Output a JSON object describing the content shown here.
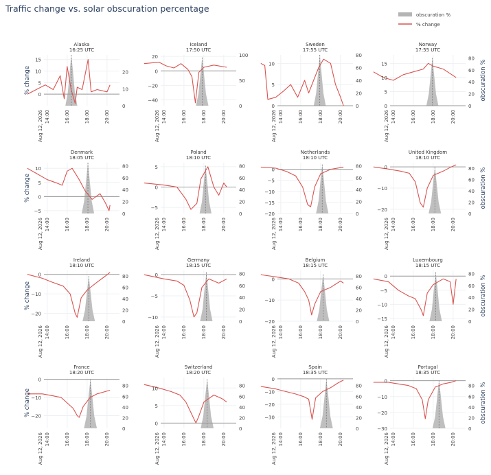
{
  "title": "Traffic change vs. solar obscuration percentage",
  "legend": {
    "placement": "top-right",
    "items": [
      {
        "label": "obscuration %",
        "color": "#b4b4b4",
        "kind": "area"
      },
      {
        "label": "% change",
        "color": "#d9534f",
        "kind": "line"
      }
    ]
  },
  "axis_labels": {
    "y_left": "% change",
    "y_right": "obscuration %"
  },
  "x_axis": {
    "ticks": [
      "14:00",
      "16:00",
      "18:00",
      "20:00"
    ],
    "date_label": "Aug 12, 2026",
    "range": [
      "13:40",
      "21:15"
    ]
  },
  "chart_data": [
    {
      "type": "line",
      "name": "Alaska",
      "subtitle": "16:25 UTC",
      "peak": "16:25",
      "width_hours": 1.2,
      "y1_range": [
        -5,
        17
      ],
      "y1_ticks": [
        0,
        5,
        10,
        15
      ],
      "y2_range": [
        0,
        30
      ],
      "y2_ticks": [
        0,
        10,
        20
      ],
      "obscuration_max": 30,
      "series_y": [
        [
          -1,
          0
        ],
        [
          0.8,
          4
        ],
        [
          1.6,
          2
        ],
        [
          2.3,
          8
        ],
        [
          2.7,
          -2
        ],
        [
          3.0,
          12
        ],
        [
          3.4,
          2
        ],
        [
          3.6,
          -1
        ],
        [
          3.8,
          -4
        ],
        [
          4.0,
          3
        ],
        [
          4.5,
          2
        ],
        [
          5.1,
          15
        ],
        [
          5.4,
          1
        ],
        [
          6,
          2
        ],
        [
          7,
          1
        ],
        [
          7.3,
          4
        ]
      ]
    },
    {
      "type": "line",
      "name": "Iceland",
      "subtitle": "17:50 UTC",
      "peak": "17:50",
      "width_hours": 1.25,
      "y1_range": [
        -48,
        22
      ],
      "y1_ticks": [
        -40,
        -20,
        0,
        20
      ],
      "y2_range": [
        0,
        100
      ],
      "y2_ticks": [
        0,
        50,
        100
      ],
      "obscuration_max": 95,
      "series_y": [
        [
          -1,
          10
        ],
        [
          0.5,
          12
        ],
        [
          1.2,
          7
        ],
        [
          2,
          4
        ],
        [
          2.7,
          10
        ],
        [
          3.4,
          2
        ],
        [
          3.8,
          -8
        ],
        [
          4.15,
          -44
        ],
        [
          4.5,
          -2
        ],
        [
          5,
          5
        ],
        [
          6,
          8
        ],
        [
          7.3,
          5
        ]
      ]
    },
    {
      "type": "line",
      "name": "Sweden",
      "subtitle": "17:55 UTC",
      "peak": "17:55",
      "width_hours": 1.2,
      "y1_range": [
        0,
        12
      ],
      "y1_ticks": [
        0,
        5,
        10
      ],
      "y2_range": [
        0,
        80
      ],
      "y2_ticks": [
        0,
        20,
        40,
        60,
        80
      ],
      "obscuration_max": 80,
      "series_y": [
        [
          -1,
          10
        ],
        [
          -0.6,
          9.5
        ],
        [
          -0.3,
          1.5
        ],
        [
          0.5,
          2
        ],
        [
          1.3,
          3.5
        ],
        [
          2,
          5
        ],
        [
          2.7,
          2
        ],
        [
          3.4,
          6
        ],
        [
          3.8,
          3
        ],
        [
          4.3,
          6
        ],
        [
          4.8,
          9
        ],
        [
          5.3,
          11
        ],
        [
          6,
          10
        ],
        [
          6.5,
          5
        ],
        [
          7.0,
          2
        ],
        [
          7.3,
          0
        ]
      ]
    },
    {
      "type": "line",
      "name": "Norway",
      "subtitle": "17:55 UTC",
      "peak": "17:55",
      "width_hours": 1.2,
      "y1_range": [
        0,
        18
      ],
      "y1_ticks": [
        0,
        5,
        10,
        15
      ],
      "y2_range": [
        0,
        85
      ],
      "y2_ticks": [
        0,
        20,
        40,
        60,
        80
      ],
      "obscuration_max": 80,
      "series_y": [
        [
          -1,
          12
        ],
        [
          0,
          10
        ],
        [
          1,
          9
        ],
        [
          2,
          11
        ],
        [
          3,
          12
        ],
        [
          4,
          13
        ],
        [
          4.5,
          15
        ],
        [
          5,
          14
        ],
        [
          6,
          13
        ],
        [
          7.3,
          10
        ]
      ]
    },
    {
      "type": "line",
      "name": "Denmark",
      "subtitle": "18:05 UTC",
      "peak": "18:05",
      "width_hours": 1.25,
      "y1_range": [
        -6,
        12
      ],
      "y1_ticks": [
        -5,
        0,
        5,
        10
      ],
      "y2_range": [
        0,
        85
      ],
      "y2_ticks": [
        0,
        20,
        40,
        60,
        80
      ],
      "obscuration_max": 85,
      "series_y": [
        [
          -1,
          10
        ],
        [
          0,
          8
        ],
        [
          1,
          6
        ],
        [
          1.8,
          5
        ],
        [
          2.5,
          4
        ],
        [
          3,
          9
        ],
        [
          3.5,
          10
        ],
        [
          4.2,
          6
        ],
        [
          4.8,
          2
        ],
        [
          5.5,
          -1
        ],
        [
          6.3,
          1
        ],
        [
          6.8,
          -2
        ],
        [
          7.2,
          -5
        ],
        [
          7.3,
          -3
        ]
      ]
    },
    {
      "type": "line",
      "name": "Poland",
      "subtitle": "18:10 UTC",
      "peak": "18:10",
      "width_hours": 1.2,
      "y1_range": [
        -6.5,
        6
      ],
      "y1_ticks": [
        -5,
        0,
        5
      ],
      "y2_range": [
        0,
        85
      ],
      "y2_ticks": [
        0,
        20,
        40,
        60,
        80
      ],
      "obscuration_max": 80,
      "series_y": [
        [
          -1,
          1
        ],
        [
          1,
          0.5
        ],
        [
          2.3,
          0
        ],
        [
          3.2,
          -3
        ],
        [
          3.7,
          -5.5
        ],
        [
          4.3,
          -4
        ],
        [
          4.7,
          2
        ],
        [
          5.4,
          5
        ],
        [
          6,
          0
        ],
        [
          6.5,
          -2
        ],
        [
          7,
          1
        ],
        [
          7.3,
          0
        ]
      ]
    },
    {
      "type": "line",
      "name": "Netherlands",
      "subtitle": "18:10 UTC",
      "peak": "18:10",
      "width_hours": 1.25,
      "y1_range": [
        -20,
        3
      ],
      "y1_ticks": [
        -20,
        -15,
        -10,
        -5,
        0
      ],
      "y2_range": [
        0,
        85
      ],
      "y2_ticks": [
        0,
        20,
        40,
        60,
        80
      ],
      "obscuration_max": 82,
      "series_y": [
        [
          -1,
          1
        ],
        [
          0.5,
          0.5
        ],
        [
          1.6,
          -1
        ],
        [
          2.5,
          -3
        ],
        [
          3.2,
          -8
        ],
        [
          3.7,
          -16
        ],
        [
          4.0,
          -17
        ],
        [
          4.4,
          -8
        ],
        [
          5,
          -2
        ],
        [
          6,
          0
        ],
        [
          7.3,
          1
        ]
      ]
    },
    {
      "type": "line",
      "name": "United Kingdom",
      "subtitle": "18:10 UTC",
      "peak": "18:10",
      "width_hours": 1.25,
      "y1_range": [
        -22,
        2
      ],
      "y1_ticks": [
        -20,
        -10,
        0
      ],
      "y2_range": [
        0,
        90
      ],
      "y2_ticks": [
        0,
        20,
        40,
        60,
        80
      ],
      "obscuration_max": 82,
      "series_y": [
        [
          -1,
          0
        ],
        [
          0.5,
          -1
        ],
        [
          1.7,
          -2
        ],
        [
          2.6,
          -3
        ],
        [
          3.2,
          -7
        ],
        [
          3.7,
          -17
        ],
        [
          4.0,
          -19
        ],
        [
          4.4,
          -10
        ],
        [
          5,
          -4
        ],
        [
          6,
          -2
        ],
        [
          6.8,
          0
        ],
        [
          7.3,
          1
        ]
      ]
    },
    {
      "type": "line",
      "name": "Ireland",
      "subtitle": "18:10 UTC",
      "peak": "18:10",
      "width_hours": 1.25,
      "y1_range": [
        -24,
        2
      ],
      "y1_ticks": [
        -20,
        -10,
        0
      ],
      "y2_range": [
        0,
        90
      ],
      "y2_ticks": [
        0,
        20,
        40,
        60,
        80
      ],
      "obscuration_max": 80,
      "series_y": [
        [
          -1,
          0
        ],
        [
          0.5,
          -2
        ],
        [
          1.5,
          -4
        ],
        [
          2.6,
          -6
        ],
        [
          3.3,
          -10
        ],
        [
          3.8,
          -20
        ],
        [
          4.0,
          -22
        ],
        [
          4.4,
          -12
        ],
        [
          5,
          -8
        ],
        [
          6,
          -4
        ],
        [
          6.8,
          -1
        ],
        [
          7.3,
          1
        ]
      ]
    },
    {
      "type": "line",
      "name": "Germany",
      "subtitle": "18:15 UTC",
      "peak": "18:15",
      "width_hours": 1.25,
      "y1_range": [
        -11,
        1
      ],
      "y1_ticks": [
        -10,
        -5,
        0
      ],
      "y2_range": [
        0,
        85
      ],
      "y2_ticks": [
        0,
        20,
        40,
        60,
        80
      ],
      "obscuration_max": 82,
      "series_y": [
        [
          -1,
          0
        ],
        [
          1,
          -1
        ],
        [
          2.3,
          -1.5
        ],
        [
          3,
          -2.5
        ],
        [
          3.6,
          -6
        ],
        [
          4.0,
          -10
        ],
        [
          4.3,
          -9
        ],
        [
          4.8,
          -3
        ],
        [
          5.5,
          -1
        ],
        [
          6.5,
          -2
        ],
        [
          7.3,
          -1
        ]
      ]
    },
    {
      "type": "line",
      "name": "Belgium",
      "subtitle": "18:15 UTC",
      "peak": "18:15",
      "width_hours": 1.25,
      "y1_range": [
        -20,
        4
      ],
      "y1_ticks": [
        -20,
        -10,
        0
      ],
      "y2_range": [
        0,
        90
      ],
      "y2_ticks": [
        0,
        20,
        40,
        60,
        80
      ],
      "obscuration_max": 83,
      "series_y": [
        [
          -1,
          2
        ],
        [
          0.5,
          1
        ],
        [
          1.8,
          0
        ],
        [
          2.8,
          -2
        ],
        [
          3.4,
          -6
        ],
        [
          3.8,
          -10
        ],
        [
          4.1,
          -17
        ],
        [
          4.4,
          -12
        ],
        [
          5,
          -6
        ],
        [
          6,
          -4
        ],
        [
          7,
          -1
        ],
        [
          7.3,
          -2
        ]
      ]
    },
    {
      "type": "line",
      "name": "Luxembourg",
      "subtitle": "18:15 UTC",
      "peak": "18:15",
      "width_hours": 1.25,
      "y1_range": [
        -16,
        2
      ],
      "y1_ticks": [
        -15,
        -10,
        -5,
        0
      ],
      "y2_range": [
        0,
        85
      ],
      "y2_ticks": [
        0,
        20,
        40,
        60,
        80
      ],
      "obscuration_max": 82,
      "series_y": [
        [
          -1,
          -1
        ],
        [
          0.5,
          -2
        ],
        [
          1.5,
          -5
        ],
        [
          2.5,
          -7
        ],
        [
          3.2,
          -8
        ],
        [
          3.8,
          -12
        ],
        [
          4.0,
          -14
        ],
        [
          4.4,
          -6
        ],
        [
          5,
          -3
        ],
        [
          6,
          -1
        ],
        [
          6.7,
          -2
        ],
        [
          7.0,
          -10
        ],
        [
          7.3,
          -1
        ]
      ]
    },
    {
      "type": "line",
      "name": "France",
      "subtitle": "18:20 UTC",
      "peak": "18:20",
      "width_hours": 1.3,
      "y1_range": [
        -27,
        1
      ],
      "y1_ticks": [
        -20,
        -10,
        0
      ],
      "y2_range": [
        0,
        95
      ],
      "y2_ticks": [
        0,
        20,
        40,
        60,
        80
      ],
      "obscuration_max": 92,
      "series_y": [
        [
          -1,
          -8
        ],
        [
          0.5,
          -8
        ],
        [
          1.5,
          -9
        ],
        [
          2.4,
          -10
        ],
        [
          3,
          -13
        ],
        [
          3.6,
          -16
        ],
        [
          4.0,
          -20
        ],
        [
          4.2,
          -21
        ],
        [
          4.6,
          -15
        ],
        [
          5.3,
          -10
        ],
        [
          6,
          -8
        ],
        [
          7.3,
          -6
        ]
      ]
    },
    {
      "type": "line",
      "name": "Switzerland",
      "subtitle": "18:20 UTC",
      "peak": "18:20",
      "width_hours": 1.3,
      "y1_range": [
        -1.5,
        13
      ],
      "y1_ticks": [
        0,
        5,
        10
      ],
      "y2_range": [
        0,
        95
      ],
      "y2_ticks": [
        0,
        20,
        40,
        60,
        80
      ],
      "obscuration_max": 92,
      "series_y": [
        [
          -1,
          11
        ],
        [
          0.5,
          10
        ],
        [
          1.7,
          9
        ],
        [
          2.6,
          8
        ],
        [
          3.2,
          6
        ],
        [
          3.7,
          3
        ],
        [
          4.2,
          0
        ],
        [
          4.5,
          2
        ],
        [
          5,
          6
        ],
        [
          6,
          8
        ],
        [
          6.8,
          7
        ],
        [
          7.3,
          6
        ]
      ]
    },
    {
      "type": "line",
      "name": "Spain",
      "subtitle": "18:35 UTC",
      "peak": "18:35",
      "width_hours": 1.3,
      "y1_range": [
        -39,
        1
      ],
      "y1_ticks": [
        -30,
        -20,
        -10,
        0
      ],
      "y2_range": [
        0,
        95
      ],
      "y2_ticks": [
        0,
        20,
        40,
        60,
        80
      ],
      "obscuration_max": 92,
      "series_y": [
        [
          -1,
          -6
        ],
        [
          0.5,
          -8
        ],
        [
          1.5,
          -10
        ],
        [
          2.5,
          -12
        ],
        [
          3.3,
          -14
        ],
        [
          3.8,
          -16
        ],
        [
          4.15,
          -32
        ],
        [
          4.5,
          -15
        ],
        [
          5.2,
          -10
        ],
        [
          6,
          -7
        ],
        [
          6.8,
          -3
        ],
        [
          7.3,
          -1
        ]
      ]
    },
    {
      "type": "line",
      "name": "Portugal",
      "subtitle": "18:35 UTC",
      "peak": "18:35",
      "width_hours": 1.3,
      "y1_range": [
        -30,
        2
      ],
      "y1_ticks": [
        -30,
        -20,
        -10,
        0
      ],
      "y2_range": [
        0,
        95
      ],
      "y2_ticks": [
        0,
        20,
        40,
        60,
        80
      ],
      "obscuration_max": 90,
      "series_y": [
        [
          -1,
          -1
        ],
        [
          0.5,
          -1
        ],
        [
          1.5,
          -2
        ],
        [
          2.5,
          -3
        ],
        [
          3.3,
          -5
        ],
        [
          3.9,
          -12
        ],
        [
          4.2,
          -24
        ],
        [
          4.5,
          -12
        ],
        [
          5.2,
          -4
        ],
        [
          6,
          -2
        ],
        [
          6.8,
          -1
        ],
        [
          7.3,
          0
        ]
      ]
    }
  ]
}
